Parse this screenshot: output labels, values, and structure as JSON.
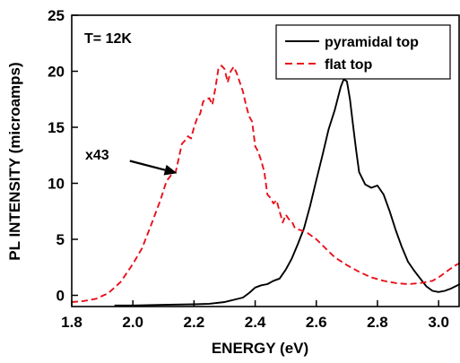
{
  "chart_data": {
    "type": "line",
    "xlabel": "ENERGY (eV)",
    "ylabel": "PL INTENSITY (microamps)",
    "xlim": [
      1.8,
      3.07
    ],
    "ylim": [
      -1,
      25
    ],
    "xticks": [
      "1.8",
      "2.0",
      "2.2",
      "2.4",
      "2.6",
      "2.8",
      "3.0"
    ],
    "yticks": [
      "0",
      "5",
      "10",
      "15",
      "20",
      "25"
    ],
    "xtick_values": [
      1.8,
      2.0,
      2.2,
      2.4,
      2.6,
      2.8,
      3.0
    ],
    "ytick_values": [
      0,
      5,
      10,
      15,
      20,
      25
    ],
    "legend_position": "top-right",
    "grid": false,
    "annotations": [
      {
        "text": "T= 12K"
      },
      {
        "text": "x43",
        "target_series": "flat top",
        "arrow_to": [
          2.145,
          10.9
        ],
        "arrow_from": [
          1.99,
          12.0
        ]
      }
    ],
    "series": [
      {
        "name": "pyramidal top",
        "color": "#000000",
        "style": "solid",
        "x": [
          1.94,
          2.0,
          2.1,
          2.2,
          2.25,
          2.3,
          2.33,
          2.36,
          2.38,
          2.4,
          2.42,
          2.44,
          2.46,
          2.48,
          2.5,
          2.52,
          2.54,
          2.56,
          2.58,
          2.6,
          2.62,
          2.64,
          2.66,
          2.68,
          2.69,
          2.7,
          2.71,
          2.72,
          2.73,
          2.74,
          2.76,
          2.78,
          2.8,
          2.82,
          2.84,
          2.86,
          2.88,
          2.9,
          2.92,
          2.94,
          2.96,
          2.98,
          3.0,
          3.02,
          3.04,
          3.07
        ],
        "y": [
          -0.9,
          -0.9,
          -0.85,
          -0.8,
          -0.75,
          -0.6,
          -0.4,
          -0.2,
          0.2,
          0.7,
          0.9,
          1.0,
          1.3,
          1.5,
          2.3,
          3.3,
          4.6,
          6.0,
          8.0,
          10.3,
          12.5,
          14.8,
          16.5,
          18.6,
          19.3,
          19.1,
          17.5,
          15.2,
          13.0,
          11.0,
          9.9,
          9.6,
          9.8,
          9.0,
          7.5,
          5.8,
          4.3,
          3.0,
          2.2,
          1.5,
          0.8,
          0.4,
          0.3,
          0.4,
          0.6,
          1.0
        ]
      },
      {
        "name": "flat top",
        "color": "#e8101b",
        "style": "dashed",
        "x": [
          1.8,
          1.84,
          1.88,
          1.92,
          1.96,
          2.0,
          2.03,
          2.06,
          2.09,
          2.11,
          2.13,
          2.14,
          2.15,
          2.16,
          2.17,
          2.18,
          2.19,
          2.2,
          2.21,
          2.22,
          2.23,
          2.24,
          2.25,
          2.26,
          2.27,
          2.28,
          2.29,
          2.3,
          2.31,
          2.32,
          2.33,
          2.34,
          2.35,
          2.36,
          2.37,
          2.38,
          2.39,
          2.4,
          2.41,
          2.42,
          2.43,
          2.44,
          2.45,
          2.46,
          2.47,
          2.48,
          2.49,
          2.5,
          2.51,
          2.52,
          2.53,
          2.55,
          2.57,
          2.6,
          2.63,
          2.66,
          2.7,
          2.74,
          2.78,
          2.82,
          2.86,
          2.9,
          2.94,
          2.98,
          3.0,
          3.02,
          3.05,
          3.07
        ],
        "y": [
          -0.6,
          -0.5,
          -0.3,
          0.2,
          1.2,
          2.8,
          4.2,
          6.3,
          8.5,
          10.2,
          10.9,
          11.0,
          12.2,
          13.5,
          13.8,
          14.2,
          14.0,
          15.0,
          15.8,
          16.2,
          17.3,
          17.5,
          17.6,
          17.0,
          18.5,
          20.3,
          20.5,
          20.2,
          19.0,
          20.0,
          20.4,
          19.8,
          19.0,
          18.2,
          17.0,
          16.0,
          15.5,
          13.3,
          12.8,
          12.0,
          11.0,
          9.0,
          8.7,
          8.2,
          8.5,
          7.5,
          6.5,
          7.2,
          6.8,
          6.6,
          6.0,
          5.8,
          5.6,
          5.0,
          4.2,
          3.4,
          2.7,
          2.1,
          1.6,
          1.3,
          1.1,
          1.0,
          1.1,
          1.3,
          1.6,
          2.0,
          2.6,
          2.9
        ]
      }
    ]
  }
}
